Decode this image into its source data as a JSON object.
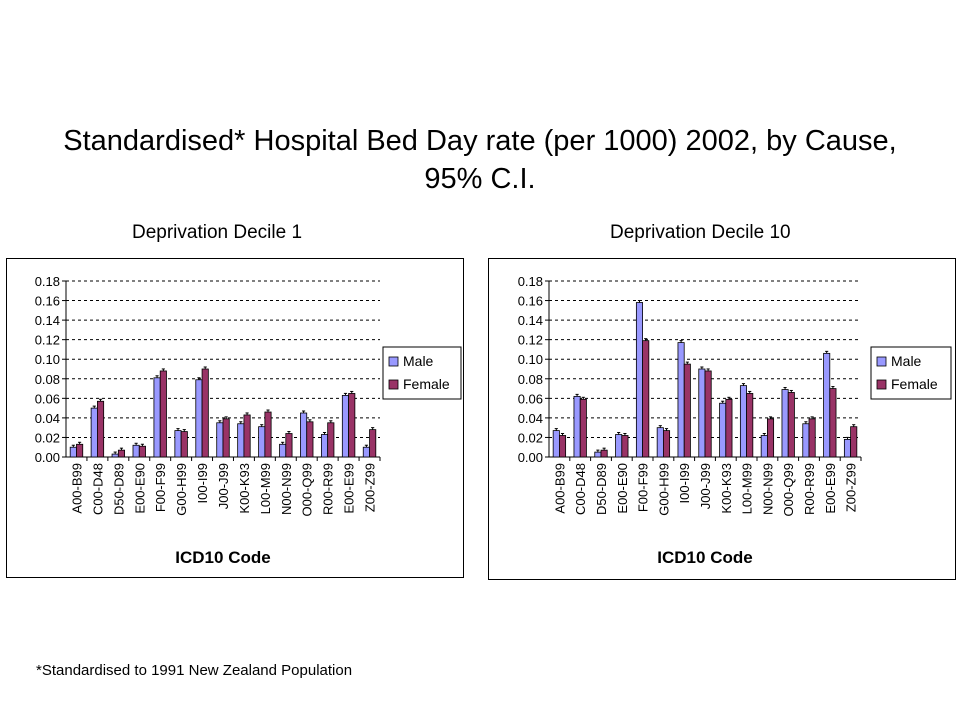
{
  "title": "Standardised* Hospital Bed Day rate (per 1000) 2002, by Cause, 95% C.I.",
  "footnote": "*Standardised to 1991 New Zealand Population",
  "colors": {
    "male": "#9999ff",
    "female": "#993366",
    "grid": "#000000"
  },
  "chart_data": [
    {
      "type": "bar",
      "panel_title": "Deprivation Decile 1",
      "xlabel": "ICD10 Code",
      "ylabel": "",
      "ylim": [
        0,
        0.18
      ],
      "yticks": [
        "0.00",
        "0.02",
        "0.04",
        "0.06",
        "0.08",
        "0.10",
        "0.12",
        "0.14",
        "0.16",
        "0.18"
      ],
      "grid": "horizontal dashed",
      "legend": "right",
      "categories": [
        "A00-B99",
        "C00-D48",
        "D50-D89",
        "E00-E90",
        "F00-F99",
        "G00-H99",
        "I00-I99",
        "J00-J99",
        "K00-K93",
        "L00-M99",
        "N00-N99",
        "O00-Q99",
        "R00-R99",
        "E00-E99",
        "Z00-Z99"
      ],
      "series": [
        {
          "name": "Male",
          "values": [
            0.01,
            0.05,
            0.003,
            0.012,
            0.081,
            0.027,
            0.079,
            0.035,
            0.034,
            0.031,
            0.013,
            0.045,
            0.023,
            0.063,
            0.01
          ]
        },
        {
          "name": "Female",
          "values": [
            0.013,
            0.057,
            0.007,
            0.011,
            0.088,
            0.026,
            0.09,
            0.039,
            0.043,
            0.046,
            0.024,
            0.036,
            0.035,
            0.065,
            0.028
          ]
        }
      ]
    },
    {
      "type": "bar",
      "panel_title": "Deprivation Decile 10",
      "xlabel": "ICD10 Code",
      "ylabel": "",
      "ylim": [
        0,
        0.18
      ],
      "yticks": [
        "0.00",
        "0.02",
        "0.04",
        "0.06",
        "0.08",
        "0.10",
        "0.12",
        "0.14",
        "0.16",
        "0.18"
      ],
      "grid": "horizontal dashed",
      "legend": "right",
      "categories": [
        "A00-B99",
        "C00-D48",
        "D50-D89",
        "E00-E90",
        "F00-F99",
        "G00-H99",
        "I00-I99",
        "J00-J99",
        "K00-K93",
        "L00-M99",
        "N00-N99",
        "O00-Q99",
        "R00-R99",
        "E00-E99",
        "Z00-Z99"
      ],
      "series": [
        {
          "name": "Male",
          "values": [
            0.027,
            0.062,
            0.005,
            0.023,
            0.158,
            0.03,
            0.117,
            0.09,
            0.055,
            0.073,
            0.022,
            0.069,
            0.034,
            0.106,
            0.018
          ]
        },
        {
          "name": "Female",
          "values": [
            0.022,
            0.059,
            0.007,
            0.022,
            0.119,
            0.027,
            0.095,
            0.088,
            0.059,
            0.065,
            0.039,
            0.066,
            0.039,
            0.07,
            0.031
          ]
        }
      ]
    }
  ]
}
